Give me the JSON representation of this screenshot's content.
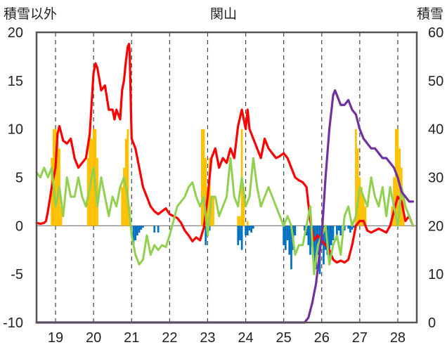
{
  "chart_data": {
    "type": "line",
    "title": "関山",
    "ylabel_left": "積雪以外",
    "ylabel_right": "積雪",
    "ylim_left": [
      -10,
      20
    ],
    "ylim_right": [
      0,
      60
    ],
    "y_ticks_left": [
      "20",
      "15",
      "10",
      "5",
      "0",
      "-5",
      "-10"
    ],
    "y_ticks_right": [
      "60",
      "50",
      "40",
      "30",
      "20",
      "10",
      "0"
    ],
    "x_ticks": [
      "19",
      "20",
      "21",
      "22",
      "23",
      "24",
      "25",
      "26",
      "27",
      "28"
    ],
    "grid": "dashed-vertical",
    "colors": {
      "red": "#ff0000",
      "green": "#92d050",
      "purple": "#7030a0",
      "orange": "#ffc000",
      "blue": "#0070c0",
      "frame": "#555555",
      "grid": "#444444"
    },
    "series": [
      {
        "color": "#ff0000",
        "axis": "left",
        "x": [
          18.5,
          18.6,
          18.7,
          18.75,
          18.8,
          18.9,
          19.0,
          19.05,
          19.1,
          19.2,
          19.3,
          19.4,
          19.5,
          19.6,
          19.7,
          19.8,
          19.9,
          20.0,
          20.05,
          20.1,
          20.2,
          20.3,
          20.4,
          20.5,
          20.55,
          20.6,
          20.7,
          20.75,
          20.8,
          20.85,
          20.9,
          20.93,
          20.95,
          21.0,
          21.1,
          21.2,
          21.3,
          21.4,
          21.5,
          21.6,
          21.7,
          21.8,
          21.9,
          22.0,
          22.1,
          22.2,
          22.3,
          22.4,
          22.5,
          22.6,
          22.7,
          22.8,
          22.9,
          23.0,
          23.05,
          23.1,
          23.2,
          23.3,
          23.4,
          23.5,
          23.6,
          23.7,
          23.8,
          23.9,
          24.0,
          24.05,
          24.1,
          24.2,
          24.3,
          24.4,
          24.5,
          24.6,
          24.7,
          24.8,
          24.9,
          25.0,
          25.1,
          25.2,
          25.3,
          25.4,
          25.5,
          25.6,
          25.7,
          25.8,
          25.9,
          26.0,
          26.1,
          26.2,
          26.3,
          26.4,
          26.5,
          26.6,
          26.7,
          26.8,
          26.9,
          27.0,
          27.1,
          27.2,
          27.3,
          27.4,
          27.5,
          27.6,
          27.7,
          27.8,
          27.9,
          28.0,
          28.1,
          28.2,
          28.3,
          28.4
        ],
        "y": [
          0.3,
          0.2,
          0.3,
          0.5,
          1.5,
          4,
          6,
          9.5,
          10.3,
          8.8,
          8.5,
          9,
          7,
          6,
          6.5,
          7,
          9.5,
          15.8,
          16.8,
          16.3,
          14,
          14.5,
          12,
          12,
          11,
          12,
          11,
          14,
          15,
          17,
          18.5,
          18.8,
          18,
          9,
          8,
          6,
          4,
          3,
          2,
          1.5,
          1.2,
          1.5,
          1.8,
          1.2,
          1.0,
          0.8,
          0.3,
          -0.5,
          -1.0,
          -1.6,
          -1.2,
          -1.5,
          -0.2,
          3,
          5,
          7,
          8,
          6,
          7,
          6.5,
          8,
          7,
          10.3,
          12,
          10,
          12,
          10,
          9,
          8,
          7,
          9,
          8,
          7.5,
          7,
          7.2,
          7.5,
          7,
          6,
          5,
          4.7,
          4.5,
          4,
          0.5,
          -1.5,
          -1,
          -1.5,
          -2,
          -2.5,
          -3.5,
          -3.8,
          -3.6,
          -3.8,
          -3.5,
          -2,
          0,
          0.5,
          0.5,
          -0.5,
          -0.7,
          -0.5,
          -0.3,
          -0.5,
          -0.7,
          0,
          1.5,
          3,
          2.5,
          0.5,
          1,
          0
        ]
      },
      {
        "color": "#92d050",
        "axis": "left",
        "x": [
          18.5,
          18.6,
          18.7,
          18.8,
          18.9,
          19.0,
          19.1,
          19.2,
          19.3,
          19.4,
          19.5,
          19.6,
          19.7,
          19.8,
          19.9,
          20.0,
          20.1,
          20.2,
          20.3,
          20.4,
          20.5,
          20.6,
          20.7,
          20.8,
          20.9,
          21.0,
          21.1,
          21.2,
          21.3,
          21.4,
          21.5,
          21.6,
          21.7,
          21.8,
          21.9,
          22.0,
          22.1,
          22.2,
          22.3,
          22.4,
          22.5,
          22.6,
          22.7,
          22.8,
          22.9,
          23.0,
          23.1,
          23.2,
          23.3,
          23.4,
          23.5,
          23.6,
          23.7,
          23.8,
          23.9,
          24.0,
          24.1,
          24.2,
          24.3,
          24.4,
          24.5,
          24.6,
          24.7,
          24.8,
          24.9,
          25.0,
          25.1,
          25.2,
          25.3,
          25.4,
          25.5,
          25.6,
          25.7,
          25.8,
          25.9,
          26.0,
          26.1,
          26.2,
          26.3,
          26.4,
          26.5,
          26.6,
          26.7,
          26.8,
          26.9,
          27.0,
          27.1,
          27.2,
          27.3,
          27.4,
          27.5,
          27.6,
          27.7,
          27.8,
          27.9,
          28.0,
          28.1,
          28.2,
          28.3,
          28.4
        ],
        "y": [
          5.5,
          5,
          6,
          5,
          6,
          2,
          4,
          1,
          5,
          3,
          3,
          5,
          3,
          2,
          4,
          6,
          2,
          5,
          3,
          1,
          3,
          2,
          4,
          5,
          3,
          -1,
          -3,
          -4,
          -3.5,
          -1,
          -3,
          -2,
          -2.5,
          -2,
          -2.2,
          -1,
          0.5,
          2,
          2.5,
          3,
          4,
          4.5,
          3,
          2,
          3,
          -1,
          3,
          3,
          1,
          2,
          3,
          7,
          3,
          2,
          5,
          2,
          3,
          7,
          4,
          2,
          3,
          4,
          3,
          2,
          1,
          0,
          1,
          0,
          -3,
          -2,
          -2,
          0,
          2,
          -5,
          -2,
          -1,
          0,
          -4,
          -2,
          -1,
          -3,
          1,
          2,
          0,
          1,
          4,
          3,
          2,
          5,
          3,
          2,
          4,
          1,
          4,
          2,
          0,
          4,
          2,
          1,
          0
        ]
      },
      {
        "color": "#7030a0",
        "axis": "right",
        "x": [
          18.5,
          19.0,
          20.0,
          21.0,
          22.0,
          23.0,
          24.0,
          25.0,
          25.55,
          25.65,
          25.75,
          25.85,
          26.0,
          26.1,
          26.2,
          26.3,
          26.35,
          26.4,
          26.5,
          26.6,
          26.7,
          26.8,
          26.9,
          27.0,
          27.1,
          27.2,
          27.3,
          27.4,
          27.5,
          27.6,
          27.7,
          27.8,
          27.9,
          28.0,
          28.1,
          28.2,
          28.3,
          28.4
        ],
        "y": [
          0,
          0,
          0,
          0,
          0,
          0,
          0,
          0,
          0,
          1,
          4,
          8,
          18,
          30,
          40,
          47,
          48,
          47,
          45,
          45,
          46,
          44,
          43,
          40,
          38,
          37,
          36,
          36,
          35,
          34,
          34,
          33,
          32,
          30,
          27,
          26,
          25,
          25
        ]
      }
    ],
    "bars": [
      {
        "color": "#ffc000",
        "axis": "left",
        "x": [
          18.9,
          18.95,
          19.0,
          19.05,
          19.1,
          19.15,
          19.85,
          19.9,
          19.95,
          20.0,
          20.05,
          20.1,
          20.75,
          20.8,
          20.85,
          20.9,
          20.95,
          22.85,
          22.9,
          22.95,
          23.0,
          23.05,
          23.1,
          23.15,
          23.8,
          23.85,
          23.9,
          23.95,
          24.05,
          26.9,
          26.95,
          27.0,
          27.05,
          27.1,
          27.15,
          27.85,
          27.9,
          27.95,
          28.0,
          28.05,
          28.1,
          28.15
        ],
        "y": [
          7,
          10,
          10,
          9,
          8,
          2,
          7,
          10,
          9,
          10,
          10,
          7,
          4,
          6,
          9,
          10,
          2,
          10,
          10,
          7,
          4,
          7,
          3,
          3,
          1,
          1,
          10,
          4,
          0.5,
          10,
          8,
          5,
          4,
          3,
          2,
          2,
          5,
          10,
          10,
          8,
          6,
          3
        ]
      },
      {
        "color": "#0070c0",
        "axis": "left",
        "x": [
          21.05,
          21.1,
          21.15,
          21.2,
          21.25,
          21.3,
          21.6,
          21.7,
          22.95,
          23.0,
          23.05,
          23.8,
          23.85,
          23.9,
          24.0,
          24.05,
          24.1,
          24.15,
          24.2,
          25.0,
          25.05,
          25.1,
          25.15,
          25.2,
          25.25,
          25.3,
          25.55,
          25.6,
          25.65,
          25.7,
          25.75,
          25.8,
          25.85,
          25.9,
          25.95,
          26.0,
          26.05,
          26.1,
          26.15,
          26.2,
          26.25,
          26.3,
          26.4,
          26.45,
          26.5,
          26.6,
          26.7,
          26.75,
          26.8,
          26.85
        ],
        "y": [
          -2,
          -1.5,
          -1,
          -0.7,
          -0.4,
          -0.2,
          -0.7,
          -0.7,
          -2,
          -1,
          -0.5,
          -2,
          -1.5,
          -2.5,
          -1,
          -1,
          -0.5,
          -0.7,
          -0.3,
          -2,
          -2.5,
          -1.5,
          -3,
          -4.5,
          -2.5,
          -1,
          -0.5,
          -1,
          -2,
          -3,
          -2,
          -4,
          -4.5,
          -3,
          -5,
          -2,
          -4,
          -2.5,
          -3,
          -3.5,
          -2,
          -1.5,
          -1.5,
          -0.5,
          -1,
          -0.5,
          -0.3,
          -0.7,
          -0.4,
          -0.2
        ]
      }
    ]
  }
}
